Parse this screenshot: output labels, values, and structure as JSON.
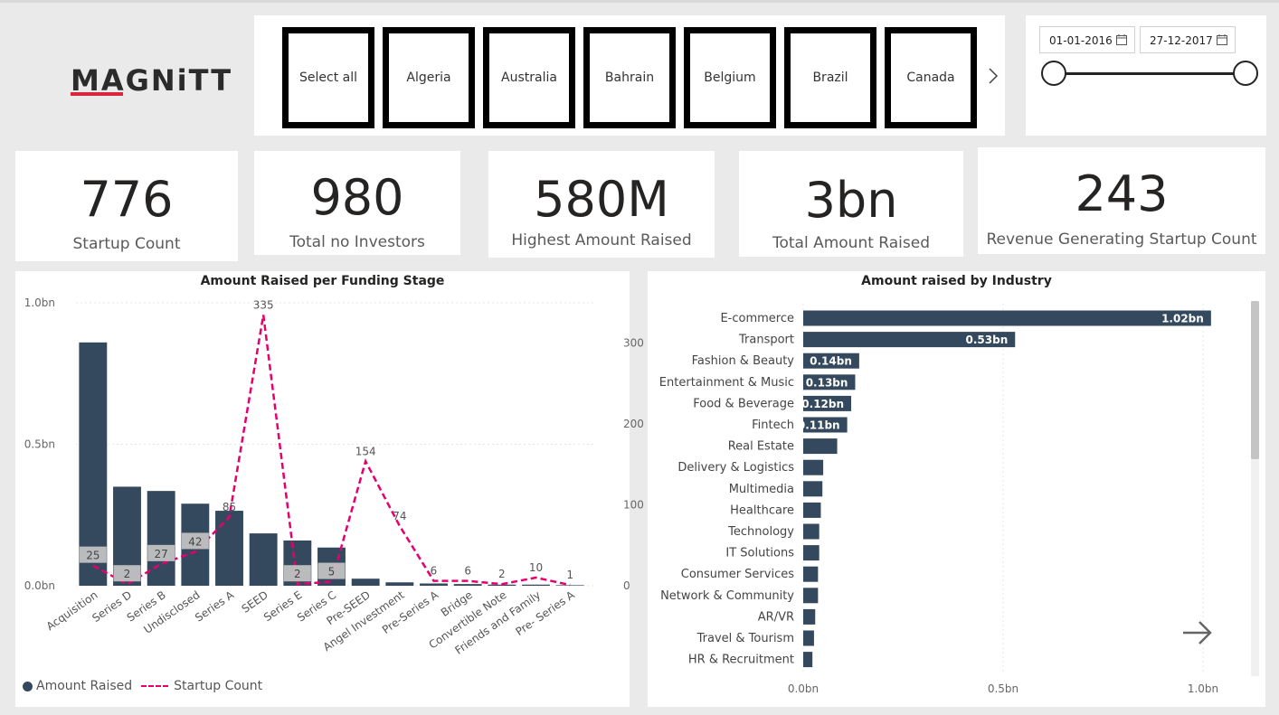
{
  "logo_text": "MAGNiTT",
  "country_slicer": {
    "tiles": [
      "Select all",
      "Algeria",
      "Australia",
      "Bahrain",
      "Belgium",
      "Brazil",
      "Canada"
    ],
    "next_icon": "chevron-right-icon"
  },
  "date_slicer": {
    "start": "01-01-2016",
    "end": "27-12-2017",
    "calendar_icon": "calendar-icon"
  },
  "kpis": [
    {
      "value": "776",
      "label": "Startup Count"
    },
    {
      "value": "980",
      "label": "Total no Investors"
    },
    {
      "value": "580M",
      "label": "Highest Amount Raised"
    },
    {
      "value": "3bn",
      "label": "Total Amount Raised"
    },
    {
      "value": "243",
      "label": "Revenue Generating Startup Count"
    }
  ],
  "colors": {
    "bar": "#34495e",
    "line": "#e6006f",
    "label_bg": "#c8c8c8"
  },
  "chart_data": [
    {
      "type": "bar",
      "title": "Amount Raised per Funding Stage",
      "categories": [
        "Acquisition",
        "Series D",
        "Series B",
        "Undisclosed",
        "Series A",
        "SEED",
        "Series E",
        "Series C",
        "Pre-SEED",
        "Angel Investment",
        "Pre-Series A",
        "Bridge",
        "Convertible Note",
        "Friends and Family",
        "Pre- Series A"
      ],
      "series": [
        {
          "name": "Amount Raised",
          "axis": "left",
          "values": [
            0.86,
            0.35,
            0.335,
            0.29,
            0.265,
            0.185,
            0.16,
            0.135,
            0.025,
            0.012,
            0.008,
            0.006,
            0.004,
            0.004,
            0.002
          ]
        },
        {
          "name": "Startup Count",
          "type": "line",
          "axis": "right",
          "values": [
            25,
            2,
            27,
            42,
            85,
            335,
            2,
            5,
            154,
            74,
            6,
            6,
            2,
            10,
            1
          ]
        }
      ],
      "data_labels": [
        "25",
        "2",
        "27",
        "42",
        "85",
        "335",
        "2",
        "5",
        "154",
        "74",
        "6",
        "6",
        "2",
        "10",
        "1"
      ],
      "y_left_ticks": [
        "1.0bn",
        "0.5bn",
        "0.0bn"
      ],
      "y_left_range": [
        0,
        1.0
      ],
      "y_right_ticks": [
        "300",
        "200",
        "100",
        "0"
      ],
      "y_right_range": [
        0,
        350
      ],
      "legend": {
        "position": "bottom-left",
        "items": [
          "Amount Raised",
          "Startup Count"
        ]
      }
    },
    {
      "type": "bar",
      "orientation": "horizontal",
      "title": "Amount raised by Industry",
      "categories": [
        "E-commerce",
        "Transport",
        "Fashion & Beauty",
        "Entertainment & Music",
        "Food & Beverage",
        "Fintech",
        "Real Estate",
        "Delivery & Logistics",
        "Multimedia",
        "Healthcare",
        "Technology",
        "IT Solutions",
        "Consumer Services",
        "Network & Community",
        "AR/VR",
        "Travel & Tourism",
        "HR & Recruitment"
      ],
      "values": [
        1.02,
        0.53,
        0.14,
        0.13,
        0.12,
        0.11,
        0.085,
        0.05,
        0.048,
        0.044,
        0.04,
        0.04,
        0.037,
        0.037,
        0.03,
        0.027,
        0.023
      ],
      "value_labels": [
        "1.02bn",
        "0.53bn",
        "0.14bn",
        "0.13bn",
        "0.12bn",
        "0.11bn",
        "",
        "",
        "",
        "",
        "",
        "",
        "",
        "",
        "",
        "",
        ""
      ],
      "x_ticks": [
        "0.0bn",
        "0.5bn",
        "1.0bn"
      ],
      "x_range": [
        0,
        1.0
      ],
      "next_page_icon": "arrow-right-icon"
    }
  ]
}
